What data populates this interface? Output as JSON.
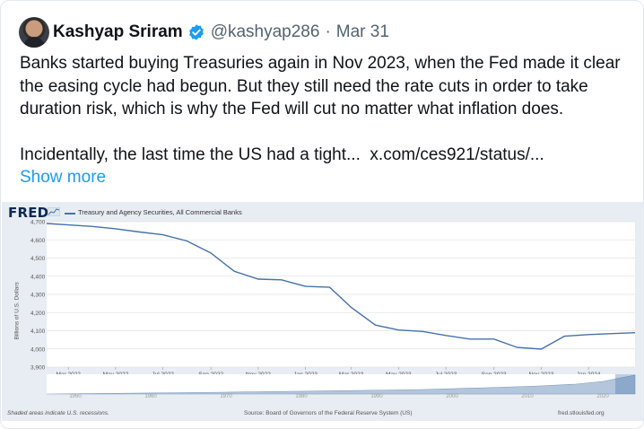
{
  "tweet": {
    "display_name": "Kashyap Sriram",
    "handle": "@kashyap286",
    "separator": "·",
    "date": "Mar 31",
    "lines": [
      "Banks started buying Treasuries again in Nov 2023, when the Fed made it clear",
      "the easing cycle had begun. But they still need the rate cuts in order to take",
      "duration risk, which is why the Fed will cut no matter what inflation does."
    ],
    "truncated_line": "Incidentally, the last time the US had a tight...",
    "link_text": "x.com/ces921/status/...",
    "show_more": "Show more"
  },
  "icons": {
    "verified": "verified-badge-icon",
    "avatar": "profile-avatar"
  },
  "colors": {
    "link_blue": "#1d9bf0",
    "series": "#4572a7",
    "fred_blue": "#0b2a55",
    "chart_bg": "#e8edf3"
  },
  "fred": {
    "logo": "FRED",
    "legend": "Treasury and Agency Securities, All Commercial Banks",
    "ylabel": "Billions of U.S. Dollars",
    "recession_note": "Shaded areas indicate U.S. recessions.",
    "source": "Source: Board of Governors of the Federal Reserve System (US)",
    "site": "fred.stlouisfed.org"
  },
  "chart_data": {
    "type": "line",
    "title": "Treasury and Agency Securities, All Commercial Banks",
    "xlabel": "",
    "ylabel": "Billions of U.S. Dollars",
    "ylim": [
      3900,
      4700
    ],
    "yticks": [
      4700,
      4600,
      4500,
      4400,
      4300,
      4200,
      4100,
      4000,
      3900
    ],
    "ytick_labels": [
      "4,700",
      "4,600",
      "4,500",
      "4,400",
      "4,300",
      "4,200",
      "4,100",
      "4,000",
      "3,900"
    ],
    "xticks": [
      "Mar 2022",
      "May 2022",
      "Jul 2022",
      "Sep 2022",
      "Nov 2022",
      "Jan 2023",
      "Mar 2023",
      "May 2023",
      "Jul 2023",
      "Sep 2023",
      "Nov 2023",
      "Jan 2024"
    ],
    "xlim": [
      "2022-02-01",
      "2024-03-01"
    ],
    "grid": true,
    "legend": "top-left",
    "series": [
      {
        "name": "Treasury and Agency Securities, All Commercial Banks",
        "x": [
          "2022-02-01",
          "2022-03-01",
          "2022-04-01",
          "2022-05-01",
          "2022-06-01",
          "2022-07-01",
          "2022-08-01",
          "2022-09-01",
          "2022-10-01",
          "2022-11-01",
          "2022-12-01",
          "2023-01-01",
          "2023-02-01",
          "2023-03-01",
          "2023-04-01",
          "2023-05-01",
          "2023-06-01",
          "2023-07-01",
          "2023-08-01",
          "2023-09-01",
          "2023-10-01",
          "2023-11-01",
          "2023-12-01",
          "2024-01-01",
          "2024-02-01",
          "2024-03-01"
        ],
        "values": [
          4690,
          4682,
          4674,
          4661,
          4643,
          4628,
          4594,
          4527,
          4427,
          4384,
          4380,
          4344,
          4339,
          4228,
          4131,
          4104,
          4096,
          4074,
          4054,
          4054,
          4008,
          3999,
          4070,
          4079,
          4084,
          4089
        ]
      }
    ],
    "navigator_ticks": [
      "1950",
      "1960",
      "1970",
      "1980",
      "1990",
      "2000",
      "2010",
      "2020"
    ]
  }
}
